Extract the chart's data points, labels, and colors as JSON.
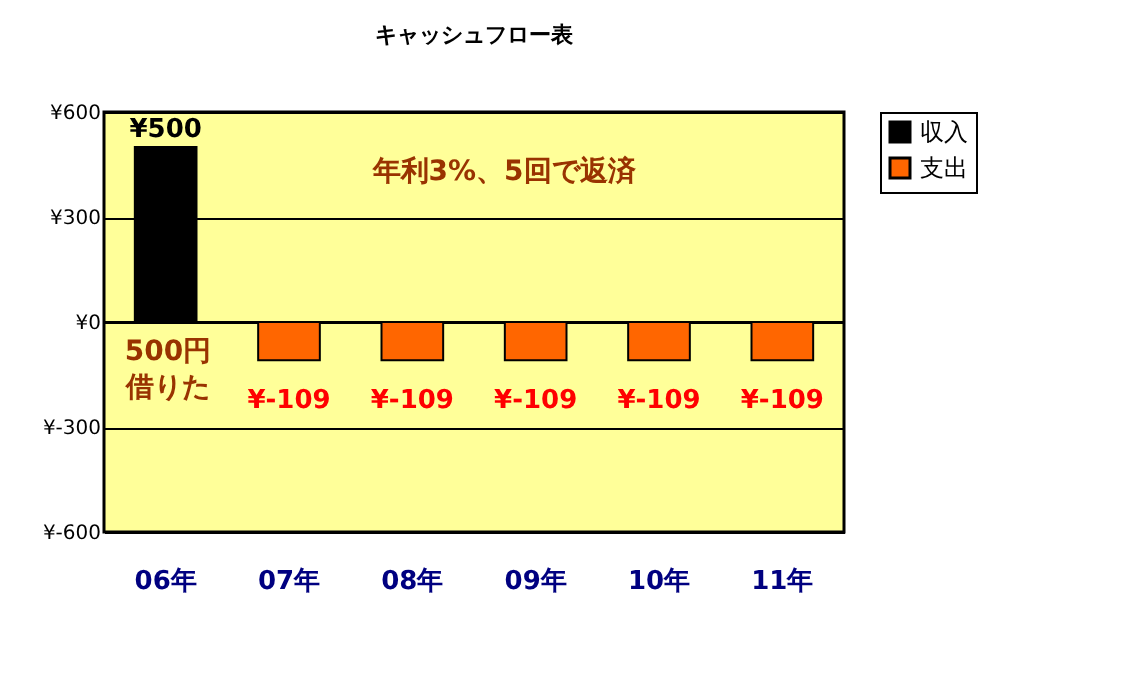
{
  "chart_data": {
    "type": "bar",
    "title": "キャッシュフロー表",
    "categories": [
      "06年",
      "07年",
      "08年",
      "09年",
      "10年",
      "11年"
    ],
    "series": [
      {
        "name": "収入",
        "color": "#000000",
        "values": [
          500,
          null,
          null,
          null,
          null,
          null
        ],
        "value_labels": [
          "¥500",
          null,
          null,
          null,
          null,
          null
        ]
      },
      {
        "name": "支出",
        "color": "#ff6600",
        "values": [
          null,
          -109,
          -109,
          -109,
          -109,
          -109
        ],
        "value_labels": [
          null,
          "¥-109",
          "¥-109",
          "¥-109",
          "¥-109",
          "¥-109"
        ]
      }
    ],
    "ylim": [
      -600,
      600
    ],
    "yticks": [
      {
        "value": -600,
        "label": "¥-600"
      },
      {
        "value": -300,
        "label": "¥-300"
      },
      {
        "value": 0,
        "label": "¥0"
      },
      {
        "value": 300,
        "label": "¥300"
      },
      {
        "value": 600,
        "label": "¥600"
      }
    ],
    "grid": "y",
    "legend": "right",
    "annotations": [
      "年利3%、5回で返済",
      "500円借りた"
    ]
  }
}
